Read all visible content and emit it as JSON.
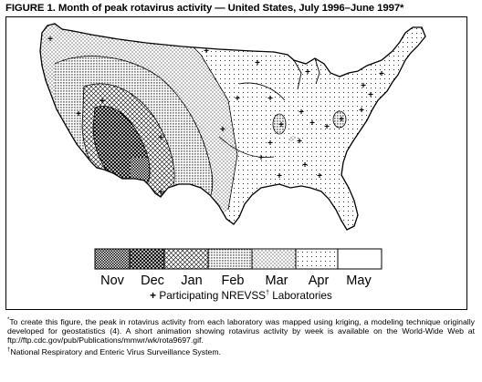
{
  "figure": {
    "title": "FIGURE 1. Month of peak rotavirus activity — United States, July 1996–June 1997*"
  },
  "legend": {
    "months": [
      {
        "label": "Nov",
        "pattern": "checker-dense"
      },
      {
        "label": "Dec",
        "pattern": "crosshatch-dark"
      },
      {
        "label": "Jan",
        "pattern": "crosshatch-light"
      },
      {
        "label": "Feb",
        "pattern": "dots-dense"
      },
      {
        "label": "Mar",
        "pattern": "dots-medium"
      },
      {
        "label": "Apr",
        "pattern": "dots-sparse"
      },
      {
        "label": "May",
        "pattern": "blank"
      }
    ],
    "marker_symbol": "+",
    "marker_text": "Participating NREVSS",
    "marker_sup": "†",
    "marker_text_after": " Laboratories"
  },
  "footnotes": {
    "star_mark": "*",
    "star_text": "To create this figure, the peak in rotavirus activity from each laboratory was mapped using kriging, a modeling technique originally developed for geostatistics (4). A short animation showing rotavirus activity by week is available on the World-Wide Web at ftp://ftp.cdc.gov/pub/Publications/mmwr/wk/rota9697.gif.",
    "dagger_mark": "†",
    "dagger_text": "National Respiratory and Enteric Virus Surveillance System."
  },
  "colors": {
    "ink": "#000000",
    "paper": "#ffffff"
  },
  "icons": {
    "marker": "plus-sign",
    "country": "usa-outline"
  }
}
